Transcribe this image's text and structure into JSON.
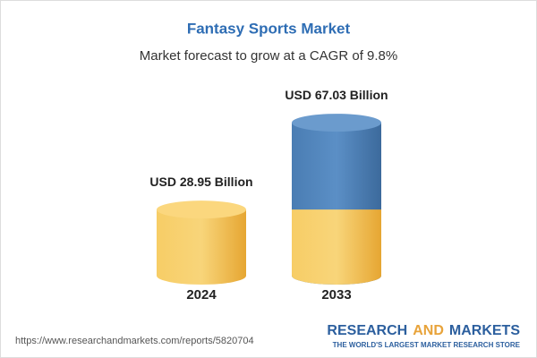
{
  "chart_data": {
    "type": "cylinder",
    "title": "Fantasy Sports Market",
    "subtitle": "Market forecast to grow at a CAGR of 9.8%",
    "categories": [
      "2024",
      "2033"
    ],
    "values": [
      28.95,
      67.03
    ],
    "value_labels": [
      "USD 28.95 Billion",
      "USD 67.03 Billion"
    ],
    "colors": [
      "#f2be4b",
      "#4a7db3"
    ]
  },
  "footer": {
    "url": "https://www.researchandmarkets.com/reports/5820704",
    "brand": [
      "RESEARCH",
      "AND",
      "MARKETS"
    ],
    "tagline": "THE WORLD'S LARGEST MARKET RESEARCH STORE"
  }
}
